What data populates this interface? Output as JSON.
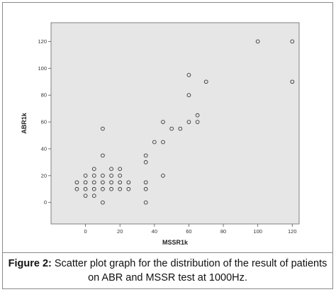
{
  "chart_data": {
    "type": "scatter",
    "xlabel": "MSSR1k",
    "ylabel": "ABR1k",
    "xlim": [
      -20,
      124
    ],
    "ylim": [
      -16,
      134
    ],
    "xticks": [
      0,
      20,
      40,
      60,
      80,
      100,
      120
    ],
    "yticks": [
      0,
      20,
      40,
      60,
      80,
      100,
      120
    ],
    "grid": false,
    "colors": {
      "plot_bg": "#e6e6e6",
      "marker_stroke": "#333333",
      "axis": "#555555"
    },
    "points": [
      [
        -5,
        10
      ],
      [
        -5,
        15
      ],
      [
        0,
        5
      ],
      [
        0,
        10
      ],
      [
        0,
        15
      ],
      [
        0,
        20
      ],
      [
        5,
        5
      ],
      [
        5,
        10
      ],
      [
        5,
        15
      ],
      [
        5,
        20
      ],
      [
        5,
        25
      ],
      [
        10,
        0
      ],
      [
        10,
        10
      ],
      [
        10,
        15
      ],
      [
        10,
        20
      ],
      [
        10,
        35
      ],
      [
        10,
        55
      ],
      [
        15,
        10
      ],
      [
        15,
        15
      ],
      [
        15,
        20
      ],
      [
        15,
        25
      ],
      [
        20,
        10
      ],
      [
        20,
        15
      ],
      [
        20,
        20
      ],
      [
        20,
        25
      ],
      [
        25,
        10
      ],
      [
        25,
        15
      ],
      [
        35,
        0
      ],
      [
        35,
        10
      ],
      [
        35,
        15
      ],
      [
        35,
        30
      ],
      [
        35,
        35
      ],
      [
        40,
        45
      ],
      [
        45,
        20
      ],
      [
        45,
        45
      ],
      [
        45,
        60
      ],
      [
        50,
        55
      ],
      [
        55,
        55
      ],
      [
        60,
        60
      ],
      [
        60,
        80
      ],
      [
        60,
        95
      ],
      [
        65,
        60
      ],
      [
        65,
        65
      ],
      [
        70,
        90
      ],
      [
        100,
        120
      ],
      [
        120,
        90
      ],
      [
        120,
        120
      ]
    ]
  },
  "caption": {
    "label": "Figure 2:",
    "text": " Scatter plot graph for the distribution of the result of patients on ABR and MSSR test at 1000Hz."
  }
}
